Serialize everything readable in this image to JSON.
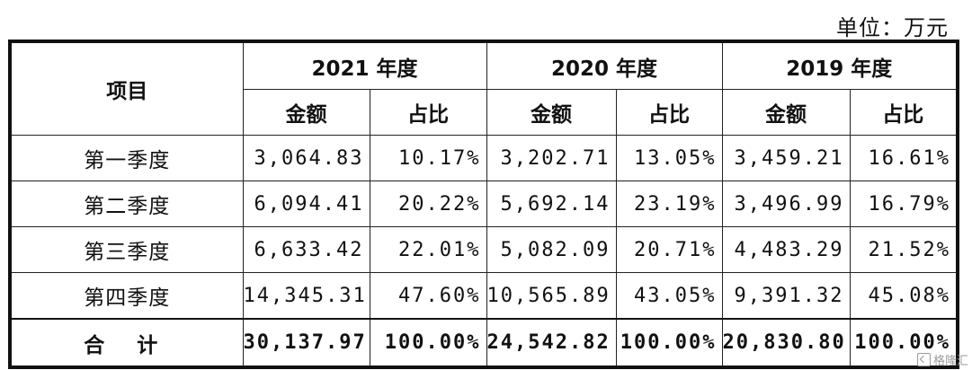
{
  "unit": "单位：万元",
  "header": {
    "item": "项目",
    "years": [
      "2021 年度",
      "2020 年度",
      "2019 年度"
    ],
    "amount": "金额",
    "ratio": "占比"
  },
  "rows": [
    {
      "label": "第一季度",
      "v": [
        "3,064.83",
        "10.17%",
        "3,202.71",
        "13.05%",
        "3,459.21",
        "16.61%"
      ]
    },
    {
      "label": "第二季度",
      "v": [
        "6,094.41",
        "20.22%",
        "5,692.14",
        "23.19%",
        "3,496.99",
        "16.79%"
      ]
    },
    {
      "label": "第三季度",
      "v": [
        "6,633.42",
        "22.01%",
        "5,082.09",
        "20.71%",
        "4,483.29",
        "21.52%"
      ]
    },
    {
      "label": "第四季度",
      "v": [
        "14,345.31",
        "47.60%",
        "10,565.89",
        "43.05%",
        "9,391.32",
        "45.08%"
      ]
    }
  ],
  "total": {
    "label": "合 计",
    "v": [
      "30,137.97",
      "100.00%",
      "24,542.82",
      "100.00%",
      "20,830.80",
      "100.00%"
    ]
  },
  "watermark": "格隆汇"
}
